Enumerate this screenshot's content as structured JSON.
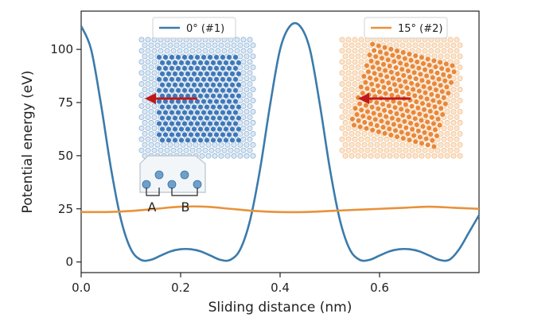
{
  "chart_data": {
    "type": "line",
    "xlabel": "Sliding distance (nm)",
    "ylabel": "Potential energy (eV)",
    "xlim": [
      0,
      0.8
    ],
    "ylim": [
      -5,
      118
    ],
    "x_ticks": [
      "0.0",
      "0.2",
      "0.4",
      "0.6"
    ],
    "y_ticks": [
      "0",
      "25",
      "50",
      "75",
      "100"
    ],
    "grid": false,
    "series": [
      {
        "name": "0° (#1)",
        "color": "#3b7bab",
        "x": [
          0.0,
          0.02,
          0.04,
          0.06,
          0.08,
          0.1,
          0.12,
          0.14,
          0.16,
          0.18,
          0.2,
          0.22,
          0.24,
          0.26,
          0.28,
          0.3,
          0.32,
          0.34,
          0.36,
          0.38,
          0.4,
          0.42,
          0.44,
          0.46,
          0.48,
          0.5,
          0.52,
          0.54,
          0.56,
          0.58,
          0.6,
          0.62,
          0.64,
          0.66,
          0.68,
          0.7,
          0.72,
          0.74,
          0.76,
          0.78,
          0.8
        ],
        "y": [
          111,
          100,
          74,
          44,
          20,
          6,
          1,
          1,
          3,
          5,
          6,
          6,
          5,
          3,
          1,
          1,
          6,
          20,
          44,
          74,
          100,
          111,
          111,
          100,
          74,
          44,
          20,
          6,
          1,
          1,
          3,
          5,
          6,
          6,
          5,
          3,
          1,
          1,
          6,
          14,
          22
        ]
      },
      {
        "name": "15° (#2)",
        "color": "#e8923a",
        "x": [
          0.0,
          0.05,
          0.1,
          0.15,
          0.2,
          0.25,
          0.3,
          0.35,
          0.4,
          0.45,
          0.5,
          0.55,
          0.6,
          0.65,
          0.7,
          0.75,
          0.8
        ],
        "y": [
          23.5,
          23.5,
          24,
          25,
          26,
          26,
          25,
          24,
          23.5,
          23.5,
          24,
          24.5,
          25,
          25.5,
          26,
          25.5,
          25
        ]
      }
    ],
    "legend_placement": "inside-top",
    "annotations": [
      {
        "text": "A",
        "x": 0.14,
        "y": 25
      },
      {
        "text": "B",
        "x": 0.21,
        "y": 25
      }
    ]
  }
}
